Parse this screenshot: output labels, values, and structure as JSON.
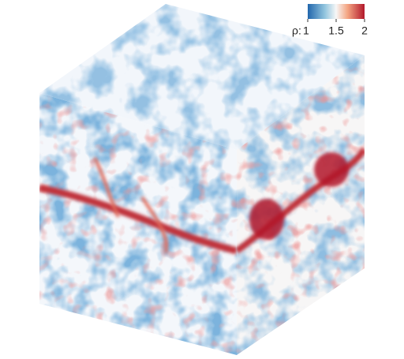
{
  "colorbar": {
    "label": "ρ:",
    "range": [
      1,
      2
    ],
    "ticks": [
      1,
      1.5,
      2
    ]
  }
}
